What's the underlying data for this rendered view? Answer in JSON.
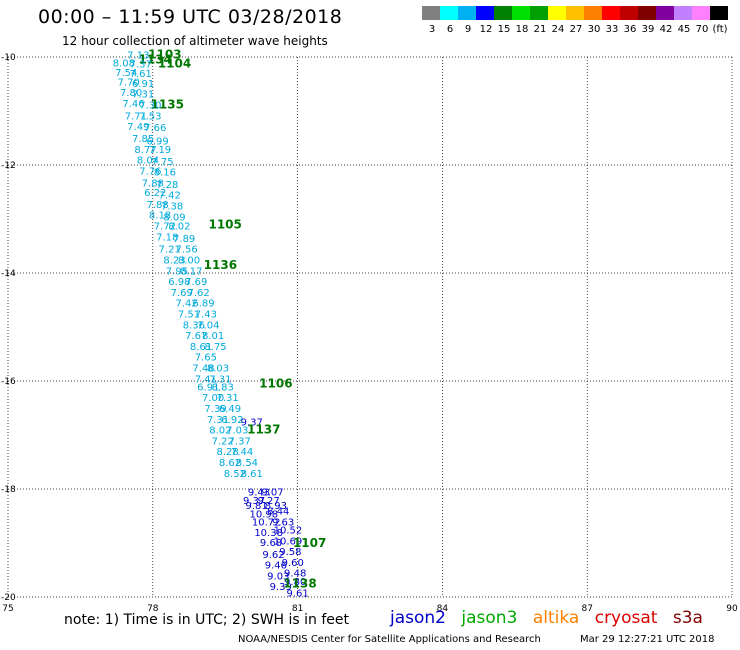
{
  "header": {
    "title": "00:00 – 11:59 UTC 03/28/2018",
    "subtitle": "12 hour collection of altimeter wave heights"
  },
  "colorbar": {
    "colors": [
      "#808080",
      "#00ffff",
      "#00b0f0",
      "#0000ff",
      "#008000",
      "#00e000",
      "#00a000",
      "#ffff00",
      "#ffc000",
      "#ff8000",
      "#ff0000",
      "#c00000",
      "#800000",
      "#8000a0",
      "#c080ff",
      "#ff80ff",
      "#000000"
    ],
    "labels": [
      "3",
      "6",
      "9",
      "12",
      "15",
      "18",
      "21",
      "24",
      "27",
      "30",
      "33",
      "36",
      "39",
      "42",
      "45",
      "70",
      "(ft)"
    ]
  },
  "chart_data": {
    "type": "scatter",
    "title": "12 hour collection of altimeter wave heights",
    "xlim": [
      75,
      90
    ],
    "ylim": [
      -20,
      -10
    ],
    "x_ticks": [
      "75",
      "78",
      "81",
      "84",
      "87",
      "90"
    ],
    "y_ticks": [
      "-10",
      "-12",
      "-14",
      "-16",
      "-18",
      "-20"
    ],
    "grid": true,
    "series": [
      {
        "name": "jason2",
        "color": "#0000cc",
        "points": [
          {
            "x": 80.05,
            "y": -16.75,
            "label": "9.37"
          },
          {
            "x": 80.2,
            "y": -18.05,
            "label": "9.43"
          },
          {
            "x": 80.48,
            "y": -18.05,
            "label": "9.07"
          },
          {
            "x": 80.1,
            "y": -18.2,
            "label": "9.37"
          },
          {
            "x": 80.4,
            "y": -18.2,
            "label": "9.27"
          },
          {
            "x": 80.15,
            "y": -18.3,
            "label": "9.81"
          },
          {
            "x": 80.55,
            "y": -18.3,
            "label": "8.93"
          },
          {
            "x": 80.3,
            "y": -18.45,
            "label": "10.98"
          },
          {
            "x": 80.6,
            "y": -18.4,
            "label": "8.44"
          },
          {
            "x": 80.35,
            "y": -18.6,
            "label": "10.72"
          },
          {
            "x": 80.7,
            "y": -18.6,
            "label": "9.63"
          },
          {
            "x": 80.4,
            "y": -18.8,
            "label": "10.38"
          },
          {
            "x": 80.8,
            "y": -18.75,
            "label": "10.52"
          },
          {
            "x": 80.45,
            "y": -18.98,
            "label": "9.68"
          },
          {
            "x": 80.8,
            "y": -18.95,
            "label": "10.69"
          },
          {
            "x": 80.5,
            "y": -19.2,
            "label": "9.62"
          },
          {
            "x": 80.85,
            "y": -19.15,
            "label": "9.58"
          },
          {
            "x": 80.55,
            "y": -19.4,
            "label": "9.46"
          },
          {
            "x": 80.9,
            "y": -19.35,
            "label": "9.60"
          },
          {
            "x": 80.6,
            "y": -19.6,
            "label": "9.03"
          },
          {
            "x": 80.95,
            "y": -19.55,
            "label": "9.48"
          },
          {
            "x": 80.65,
            "y": -19.8,
            "label": "9.39"
          },
          {
            "x": 80.95,
            "y": -19.7,
            "label": "9.80"
          },
          {
            "x": 81.0,
            "y": -19.92,
            "label": "9.61"
          }
        ]
      },
      {
        "name": "jason3",
        "color": "#007700",
        "points": [
          {
            "x": 78.25,
            "y": -9.95,
            "label": "1103"
          },
          {
            "x": 78.05,
            "y": -10.05,
            "label": "1134"
          },
          {
            "x": 78.45,
            "y": -10.12,
            "label": "1104"
          },
          {
            "x": 78.3,
            "y": -10.88,
            "label": "1135"
          },
          {
            "x": 79.5,
            "y": -13.1,
            "label": "1105"
          },
          {
            "x": 79.4,
            "y": -13.85,
            "label": "1136"
          },
          {
            "x": 80.55,
            "y": -16.05,
            "label": "1106"
          },
          {
            "x": 80.3,
            "y": -16.9,
            "label": "1137"
          },
          {
            "x": 81.25,
            "y": -19.0,
            "label": "1107"
          },
          {
            "x": 81.05,
            "y": -19.75,
            "label": "1138"
          }
        ]
      },
      {
        "name": "altika",
        "color": "#ff8000",
        "points": []
      },
      {
        "name": "cryosat",
        "color": "#cc0000",
        "points": []
      },
      {
        "name": "s3a",
        "color": "#800000",
        "points": []
      },
      {
        "name": "",
        "color": "#00aadd",
        "points": [
          {
            "x": 77.7,
            "y": -9.95,
            "label": "7.13"
          },
          {
            "x": 77.4,
            "y": -10.1,
            "label": "8.08"
          },
          {
            "x": 77.75,
            "y": -10.12,
            "label": "7.37"
          },
          {
            "x": 77.45,
            "y": -10.28,
            "label": "7.54"
          },
          {
            "x": 77.75,
            "y": -10.3,
            "label": "7.61"
          },
          {
            "x": 77.5,
            "y": -10.45,
            "label": "7.70"
          },
          {
            "x": 77.8,
            "y": -10.48,
            "label": "6.91"
          },
          {
            "x": 77.55,
            "y": -10.65,
            "label": "7.80"
          },
          {
            "x": 77.8,
            "y": -10.68,
            "label": "7.31"
          },
          {
            "x": 77.6,
            "y": -10.85,
            "label": "7.46"
          },
          {
            "x": 77.95,
            "y": -10.88,
            "label": "7.30"
          },
          {
            "x": 77.65,
            "y": -11.08,
            "label": "7.71"
          },
          {
            "x": 77.95,
            "y": -11.08,
            "label": "7.53"
          },
          {
            "x": 77.7,
            "y": -11.28,
            "label": "7.49"
          },
          {
            "x": 78.05,
            "y": -11.3,
            "label": "7.66"
          },
          {
            "x": 77.8,
            "y": -11.5,
            "label": "7.85"
          },
          {
            "x": 78.1,
            "y": -11.55,
            "label": "6.99"
          },
          {
            "x": 77.85,
            "y": -11.7,
            "label": "8.77"
          },
          {
            "x": 78.15,
            "y": -11.7,
            "label": "7.19"
          },
          {
            "x": 77.9,
            "y": -11.9,
            "label": "8.04"
          },
          {
            "x": 78.2,
            "y": -11.93,
            "label": "7.75"
          },
          {
            "x": 77.95,
            "y": -12.1,
            "label": "7.76"
          },
          {
            "x": 78.25,
            "y": -12.12,
            "label": "8.16"
          },
          {
            "x": 78.0,
            "y": -12.32,
            "label": "7.88"
          },
          {
            "x": 78.3,
            "y": -12.35,
            "label": "7.28"
          },
          {
            "x": 78.05,
            "y": -12.5,
            "label": "6.22"
          },
          {
            "x": 78.35,
            "y": -12.55,
            "label": "7.42"
          },
          {
            "x": 78.1,
            "y": -12.72,
            "label": "7.88"
          },
          {
            "x": 78.4,
            "y": -12.75,
            "label": "7.38"
          },
          {
            "x": 78.15,
            "y": -12.92,
            "label": "8.18"
          },
          {
            "x": 78.45,
            "y": -12.95,
            "label": "8.09"
          },
          {
            "x": 78.25,
            "y": -13.12,
            "label": "7.72"
          },
          {
            "x": 78.55,
            "y": -13.12,
            "label": "8.02"
          },
          {
            "x": 78.3,
            "y": -13.32,
            "label": "7.18"
          },
          {
            "x": 78.65,
            "y": -13.35,
            "label": "7.89"
          },
          {
            "x": 78.35,
            "y": -13.55,
            "label": "7.21"
          },
          {
            "x": 78.7,
            "y": -13.55,
            "label": "7.56"
          },
          {
            "x": 78.45,
            "y": -13.75,
            "label": "8.23"
          },
          {
            "x": 78.75,
            "y": -13.75,
            "label": "8.00"
          },
          {
            "x": 78.5,
            "y": -13.95,
            "label": "7.95"
          },
          {
            "x": 78.8,
            "y": -13.95,
            "label": "8.17"
          },
          {
            "x": 78.55,
            "y": -14.15,
            "label": "6.98"
          },
          {
            "x": 78.9,
            "y": -14.15,
            "label": "7.69"
          },
          {
            "x": 78.6,
            "y": -14.35,
            "label": "7.69"
          },
          {
            "x": 78.95,
            "y": -14.35,
            "label": "7.62"
          },
          {
            "x": 78.7,
            "y": -14.55,
            "label": "7.42"
          },
          {
            "x": 79.05,
            "y": -14.55,
            "label": "6.89"
          },
          {
            "x": 78.75,
            "y": -14.75,
            "label": "7.51"
          },
          {
            "x": 79.1,
            "y": -14.75,
            "label": "7.43"
          },
          {
            "x": 78.85,
            "y": -14.95,
            "label": "8.36"
          },
          {
            "x": 79.15,
            "y": -14.95,
            "label": "7.04"
          },
          {
            "x": 78.9,
            "y": -15.15,
            "label": "7.67"
          },
          {
            "x": 79.25,
            "y": -15.15,
            "label": "8.01"
          },
          {
            "x": 79.0,
            "y": -15.35,
            "label": "8.61"
          },
          {
            "x": 79.3,
            "y": -15.35,
            "label": "8.75"
          },
          {
            "x": 79.1,
            "y": -15.55,
            "label": "7.65"
          },
          {
            "x": 79.05,
            "y": -15.75,
            "label": "7.48"
          },
          {
            "x": 79.35,
            "y": -15.75,
            "label": "8.03"
          },
          {
            "x": 79.1,
            "y": -15.95,
            "label": "7.41"
          },
          {
            "x": 79.4,
            "y": -15.95,
            "label": "7.31"
          },
          {
            "x": 79.15,
            "y": -16.1,
            "label": "6.91"
          },
          {
            "x": 79.45,
            "y": -16.1,
            "label": "8.83"
          },
          {
            "x": 79.25,
            "y": -16.3,
            "label": "7.00"
          },
          {
            "x": 79.55,
            "y": -16.3,
            "label": "7.31"
          },
          {
            "x": 79.3,
            "y": -16.5,
            "label": "7.39"
          },
          {
            "x": 79.6,
            "y": -16.5,
            "label": "6.49"
          },
          {
            "x": 79.35,
            "y": -16.7,
            "label": "7.31"
          },
          {
            "x": 79.65,
            "y": -16.7,
            "label": "6.92"
          },
          {
            "x": 79.4,
            "y": -16.9,
            "label": "8.02"
          },
          {
            "x": 79.75,
            "y": -16.9,
            "label": "7.03"
          },
          {
            "x": 79.45,
            "y": -17.1,
            "label": "7.22"
          },
          {
            "x": 79.8,
            "y": -17.1,
            "label": "7.37"
          },
          {
            "x": 79.55,
            "y": -17.3,
            "label": "8.28"
          },
          {
            "x": 79.85,
            "y": -17.3,
            "label": "7.44"
          },
          {
            "x": 79.6,
            "y": -17.5,
            "label": "8.62"
          },
          {
            "x": 79.95,
            "y": -17.5,
            "label": "8.54"
          },
          {
            "x": 79.7,
            "y": -17.7,
            "label": "8.52"
          },
          {
            "x": 80.05,
            "y": -17.7,
            "label": "8.61"
          }
        ]
      }
    ]
  },
  "legend": {
    "items": [
      {
        "name": "jason2",
        "color": "#0000cc"
      },
      {
        "name": "jason3",
        "color": "#00aa00"
      },
      {
        "name": "altika",
        "color": "#ff8000"
      },
      {
        "name": "cryosat",
        "color": "#dd0000"
      },
      {
        "name": "s3a",
        "color": "#800000"
      }
    ]
  },
  "footer": {
    "note": "note: 1) Time is in UTC; 2) SWH is in feet",
    "credit": "NOAA/NESDIS Center for Satellite Applications and Research",
    "timestamp": "Mar 29 12:27:21 UTC 2018"
  }
}
